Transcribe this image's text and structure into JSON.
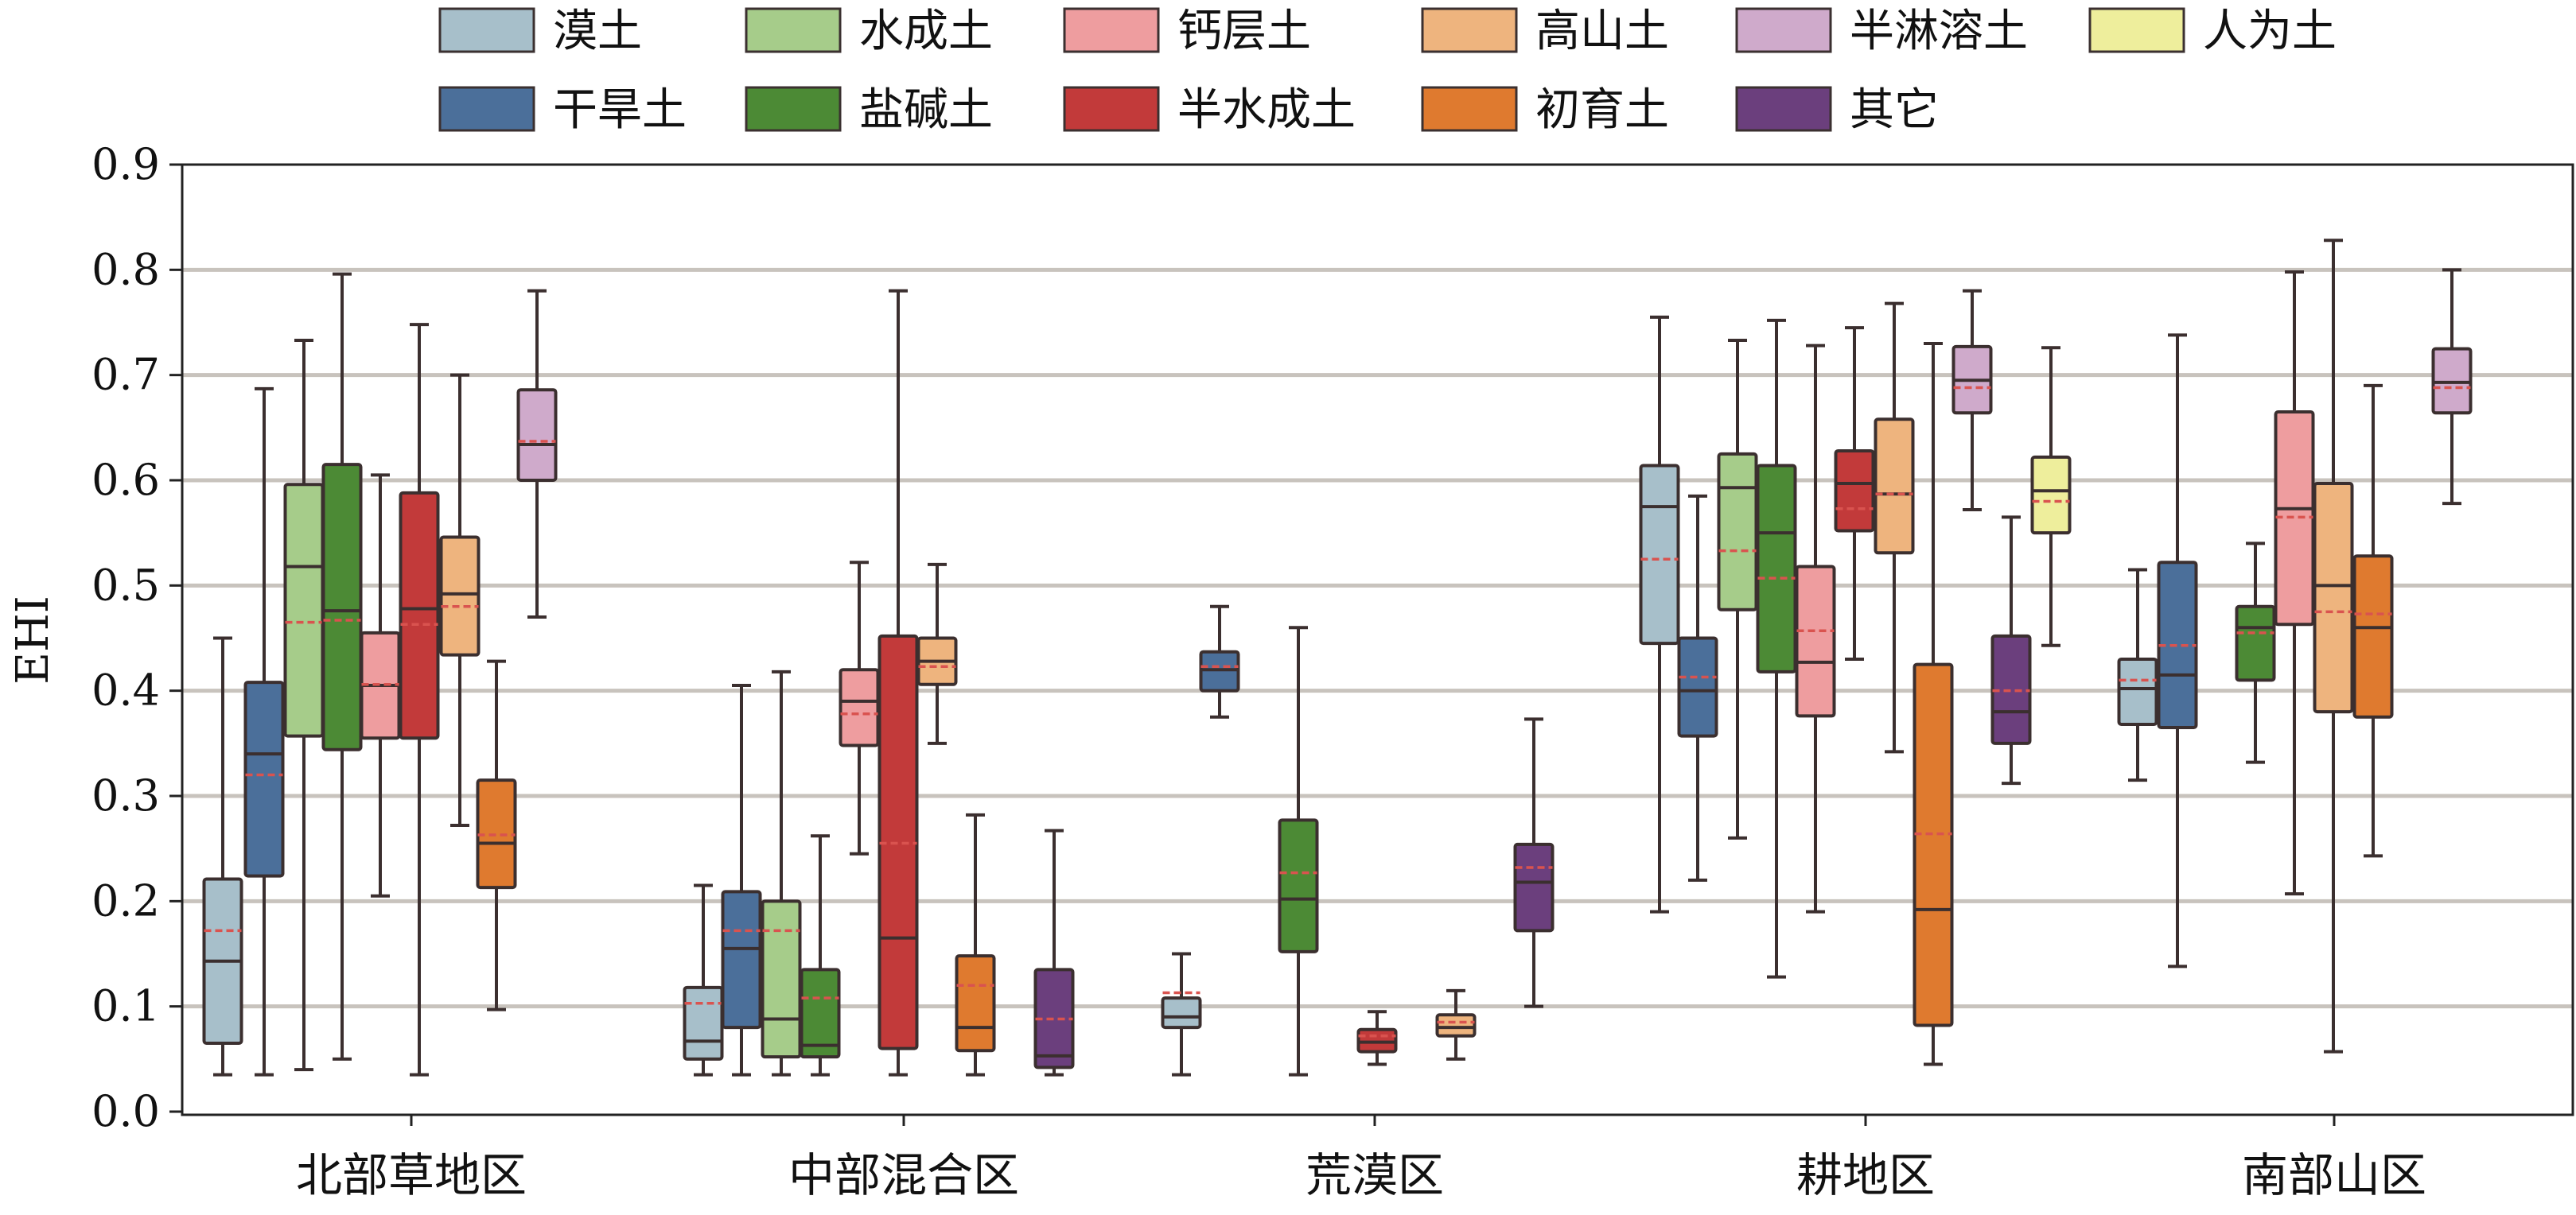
{
  "chart_data": {
    "type": "box",
    "ylabel": "EHI",
    "ylim": [
      0.0,
      0.9
    ],
    "yticks": [
      "0.0",
      "0.1",
      "0.2",
      "0.3",
      "0.4",
      "0.5",
      "0.6",
      "0.7",
      "0.8",
      "0.9"
    ],
    "grid": "horizontal",
    "legend_position": "top",
    "categories": [
      "北部草地区",
      "中部混合区",
      "荒漠区",
      "耕地区",
      "南部山区"
    ],
    "series": [
      {
        "name": "漠土",
        "color": "#a7bfca"
      },
      {
        "name": "干旱土",
        "color": "#4b6f9a"
      },
      {
        "name": "水成土",
        "color": "#a6cc8a"
      },
      {
        "name": "盐碱土",
        "color": "#4c8a35"
      },
      {
        "name": "钙层土",
        "color": "#ee9d9f"
      },
      {
        "name": "半水成土",
        "color": "#c23a3a"
      },
      {
        "name": "高山土",
        "color": "#eeb47e"
      },
      {
        "name": "初育土",
        "color": "#df7a2f"
      },
      {
        "name": "半淋溶土",
        "color": "#cfaacb"
      },
      {
        "name": "其它",
        "color": "#6b3f7d"
      },
      {
        "name": "人为土",
        "color": "#eeee9c"
      }
    ],
    "boxes": [
      {
        "category": "北部草地区",
        "series": "漠土",
        "whisker_low": 0.035,
        "q1": 0.065,
        "median": 0.143,
        "q3": 0.221,
        "whisker_high": 0.45,
        "mean": 0.172
      },
      {
        "category": "北部草地区",
        "series": "干旱土",
        "whisker_low": 0.035,
        "q1": 0.224,
        "median": 0.34,
        "q3": 0.408,
        "whisker_high": 0.687,
        "mean": 0.32
      },
      {
        "category": "北部草地区",
        "series": "水成土",
        "whisker_low": 0.04,
        "q1": 0.357,
        "median": 0.518,
        "q3": 0.596,
        "whisker_high": 0.733,
        "mean": 0.465
      },
      {
        "category": "北部草地区",
        "series": "盐碱土",
        "whisker_low": 0.05,
        "q1": 0.344,
        "median": 0.476,
        "q3": 0.615,
        "whisker_high": 0.796,
        "mean": 0.467
      },
      {
        "category": "北部草地区",
        "series": "钙层土",
        "whisker_low": 0.205,
        "q1": 0.355,
        "median": 0.405,
        "q3": 0.455,
        "whisker_high": 0.605,
        "mean": 0.406
      },
      {
        "category": "北部草地区",
        "series": "半水成土",
        "whisker_low": 0.035,
        "q1": 0.355,
        "median": 0.478,
        "q3": 0.588,
        "whisker_high": 0.748,
        "mean": 0.463
      },
      {
        "category": "北部草地区",
        "series": "高山土",
        "whisker_low": 0.272,
        "q1": 0.434,
        "median": 0.492,
        "q3": 0.546,
        "whisker_high": 0.7,
        "mean": 0.48
      },
      {
        "category": "北部草地区",
        "series": "初育土",
        "whisker_low": 0.097,
        "q1": 0.213,
        "median": 0.255,
        "q3": 0.315,
        "whisker_high": 0.428,
        "mean": 0.263
      },
      {
        "category": "北部草地区",
        "series": "半淋溶土",
        "whisker_low": 0.47,
        "q1": 0.6,
        "median": 0.634,
        "q3": 0.686,
        "whisker_high": 0.78,
        "mean": 0.637
      },
      {
        "category": "中部混合区",
        "series": "漠土",
        "whisker_low": 0.035,
        "q1": 0.05,
        "median": 0.067,
        "q3": 0.118,
        "whisker_high": 0.215,
        "mean": 0.103
      },
      {
        "category": "中部混合区",
        "series": "干旱土",
        "whisker_low": 0.035,
        "q1": 0.08,
        "median": 0.155,
        "q3": 0.209,
        "whisker_high": 0.405,
        "mean": 0.172
      },
      {
        "category": "中部混合区",
        "series": "水成土",
        "whisker_low": 0.035,
        "q1": 0.052,
        "median": 0.088,
        "q3": 0.2,
        "whisker_high": 0.418,
        "mean": 0.172
      },
      {
        "category": "中部混合区",
        "series": "盐碱土",
        "whisker_low": 0.035,
        "q1": 0.052,
        "median": 0.063,
        "q3": 0.135,
        "whisker_high": 0.262,
        "mean": 0.108
      },
      {
        "category": "中部混合区",
        "series": "钙层土",
        "whisker_low": 0.245,
        "q1": 0.348,
        "median": 0.39,
        "q3": 0.42,
        "whisker_high": 0.522,
        "mean": 0.378
      },
      {
        "category": "中部混合区",
        "series": "半水成土",
        "whisker_low": 0.035,
        "q1": 0.06,
        "median": 0.165,
        "q3": 0.452,
        "whisker_high": 0.78,
        "mean": 0.255
      },
      {
        "category": "中部混合区",
        "series": "高山土",
        "whisker_low": 0.35,
        "q1": 0.406,
        "median": 0.428,
        "q3": 0.45,
        "whisker_high": 0.52,
        "mean": 0.423
      },
      {
        "category": "中部混合区",
        "series": "初育土",
        "whisker_low": 0.035,
        "q1": 0.058,
        "median": 0.08,
        "q3": 0.148,
        "whisker_high": 0.282,
        "mean": 0.12
      },
      {
        "category": "中部混合区",
        "series": "其它",
        "whisker_low": 0.035,
        "q1": 0.042,
        "median": 0.053,
        "q3": 0.135,
        "whisker_high": 0.267,
        "mean": 0.088
      },
      {
        "category": "荒漠区",
        "series": "漠土",
        "whisker_low": 0.035,
        "q1": 0.08,
        "median": 0.09,
        "q3": 0.108,
        "whisker_high": 0.15,
        "mean": 0.113
      },
      {
        "category": "荒漠区",
        "series": "干旱土",
        "whisker_low": 0.375,
        "q1": 0.4,
        "median": 0.42,
        "q3": 0.437,
        "whisker_high": 0.48,
        "mean": 0.423
      },
      {
        "category": "荒漠区",
        "series": "盐碱土",
        "whisker_low": 0.035,
        "q1": 0.152,
        "median": 0.202,
        "q3": 0.277,
        "whisker_high": 0.46,
        "mean": 0.227
      },
      {
        "category": "荒漠区",
        "series": "半水成土",
        "whisker_low": 0.045,
        "q1": 0.057,
        "median": 0.066,
        "q3": 0.078,
        "whisker_high": 0.095,
        "mean": 0.072
      },
      {
        "category": "荒漠区",
        "series": "高山土",
        "whisker_low": 0.05,
        "q1": 0.072,
        "median": 0.08,
        "q3": 0.092,
        "whisker_high": 0.115,
        "mean": 0.085
      },
      {
        "category": "荒漠区",
        "series": "其它",
        "whisker_low": 0.1,
        "q1": 0.172,
        "median": 0.218,
        "q3": 0.254,
        "whisker_high": 0.373,
        "mean": 0.232
      },
      {
        "category": "耕地区",
        "series": "漠土",
        "whisker_low": 0.19,
        "q1": 0.445,
        "median": 0.575,
        "q3": 0.614,
        "whisker_high": 0.755,
        "mean": 0.525
      },
      {
        "category": "耕地区",
        "series": "干旱土",
        "whisker_low": 0.22,
        "q1": 0.357,
        "median": 0.4,
        "q3": 0.45,
        "whisker_high": 0.585,
        "mean": 0.413
      },
      {
        "category": "耕地区",
        "series": "水成土",
        "whisker_low": 0.26,
        "q1": 0.477,
        "median": 0.593,
        "q3": 0.625,
        "whisker_high": 0.733,
        "mean": 0.533
      },
      {
        "category": "耕地区",
        "series": "盐碱土",
        "whisker_low": 0.128,
        "q1": 0.418,
        "median": 0.55,
        "q3": 0.614,
        "whisker_high": 0.752,
        "mean": 0.507
      },
      {
        "category": "耕地区",
        "series": "钙层土",
        "whisker_low": 0.19,
        "q1": 0.376,
        "median": 0.427,
        "q3": 0.518,
        "whisker_high": 0.728,
        "mean": 0.457
      },
      {
        "category": "耕地区",
        "series": "半水成土",
        "whisker_low": 0.43,
        "q1": 0.552,
        "median": 0.597,
        "q3": 0.628,
        "whisker_high": 0.745,
        "mean": 0.573
      },
      {
        "category": "耕地区",
        "series": "高山土",
        "whisker_low": 0.342,
        "q1": 0.531,
        "median": 0.587,
        "q3": 0.658,
        "whisker_high": 0.768,
        "mean": 0.587
      },
      {
        "category": "耕地区",
        "series": "初育土",
        "whisker_low": 0.045,
        "q1": 0.082,
        "median": 0.192,
        "q3": 0.425,
        "whisker_high": 0.73,
        "mean": 0.264
      },
      {
        "category": "耕地区",
        "series": "半淋溶土",
        "whisker_low": 0.572,
        "q1": 0.664,
        "median": 0.695,
        "q3": 0.727,
        "whisker_high": 0.78,
        "mean": 0.688
      },
      {
        "category": "耕地区",
        "series": "其它",
        "whisker_low": 0.312,
        "q1": 0.35,
        "median": 0.38,
        "q3": 0.452,
        "whisker_high": 0.565,
        "mean": 0.4
      },
      {
        "category": "耕地区",
        "series": "人为土",
        "whisker_low": 0.443,
        "q1": 0.55,
        "median": 0.59,
        "q3": 0.622,
        "whisker_high": 0.726,
        "mean": 0.58
      },
      {
        "category": "南部山区",
        "series": "漠土",
        "whisker_low": 0.315,
        "q1": 0.368,
        "median": 0.402,
        "q3": 0.43,
        "whisker_high": 0.515,
        "mean": 0.41
      },
      {
        "category": "南部山区",
        "series": "干旱土",
        "whisker_low": 0.138,
        "q1": 0.365,
        "median": 0.415,
        "q3": 0.522,
        "whisker_high": 0.738,
        "mean": 0.443
      },
      {
        "category": "南部山区",
        "series": "盐碱土",
        "whisker_low": 0.332,
        "q1": 0.41,
        "median": 0.46,
        "q3": 0.48,
        "whisker_high": 0.54,
        "mean": 0.455
      },
      {
        "category": "南部山区",
        "series": "钙层土",
        "whisker_low": 0.207,
        "q1": 0.463,
        "median": 0.573,
        "q3": 0.665,
        "whisker_high": 0.798,
        "mean": 0.565
      },
      {
        "category": "南部山区",
        "series": "高山土",
        "whisker_low": 0.057,
        "q1": 0.38,
        "median": 0.5,
        "q3": 0.597,
        "whisker_high": 0.828,
        "mean": 0.475
      },
      {
        "category": "南部山区",
        "series": "初育土",
        "whisker_low": 0.243,
        "q1": 0.375,
        "median": 0.46,
        "q3": 0.528,
        "whisker_high": 0.69,
        "mean": 0.473
      },
      {
        "category": "南部山区",
        "series": "半淋溶土",
        "whisker_low": 0.578,
        "q1": 0.664,
        "median": 0.693,
        "q3": 0.725,
        "whisker_high": 0.8,
        "mean": 0.688
      }
    ]
  }
}
